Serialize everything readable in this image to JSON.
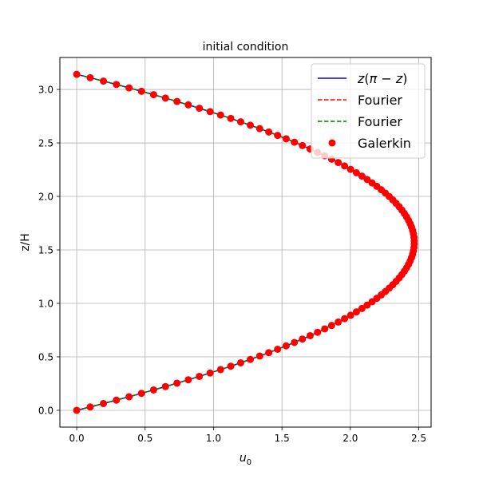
{
  "chart_data": {
    "type": "line",
    "title": "initial condition",
    "xlabel": "u",
    "xlabel_sub": "0",
    "ylabel": "z/H",
    "xlim": [
      -0.123,
      2.59
    ],
    "ylim": [
      -0.157,
      3.299
    ],
    "xticks": [
      0.0,
      0.5,
      1.0,
      1.5,
      2.0,
      2.5
    ],
    "xtick_labels": [
      "0.0",
      "0.5",
      "1.0",
      "1.5",
      "2.0",
      "2.5"
    ],
    "yticks": [
      0.0,
      0.5,
      1.0,
      1.5,
      2.0,
      2.5,
      3.0
    ],
    "ytick_labels": [
      "0.0",
      "0.5",
      "1.0",
      "1.5",
      "2.0",
      "2.5",
      "3.0"
    ],
    "grid": true,
    "legend_position": "top-right",
    "function": "u0 = z(pi - z), z from 0 to pi",
    "z_max": 3.14159,
    "n_line_samples": 200,
    "n_markers": 100,
    "series": [
      {
        "name": "z(π − z)",
        "legend_italic_prefix": "z",
        "legend_paren": "(",
        "legend_pi": "π",
        "legend_minus": " − ",
        "legend_z2": "z",
        "legend_close": ")",
        "style": "solid",
        "color": "#0000ff",
        "kind": "line"
      },
      {
        "name": "Fourier",
        "style": "dashed",
        "color": "#ff0000",
        "kind": "line"
      },
      {
        "name": "Fourier",
        "style": "dashed",
        "color": "#008000",
        "kind": "line"
      },
      {
        "name": "Galerkin",
        "style": "markers",
        "color": "#ff0000",
        "kind": "scatter"
      }
    ]
  }
}
